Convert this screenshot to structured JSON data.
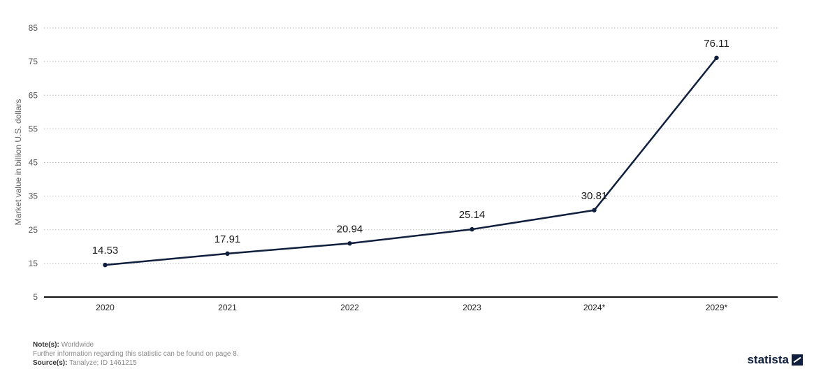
{
  "chart_data": {
    "type": "line",
    "categories": [
      "2020",
      "2021",
      "2022",
      "2023",
      "2024*",
      "2029*"
    ],
    "values": [
      14.53,
      17.91,
      20.94,
      25.14,
      30.81,
      76.11
    ],
    "data_labels": [
      "14.53",
      "17.91",
      "20.94",
      "25.14",
      "30.81",
      "76.11"
    ],
    "ylabel": "Market value in billion U.S. dollars",
    "ylim": [
      5,
      85
    ],
    "yticks": [
      5,
      15,
      25,
      35,
      45,
      55,
      65,
      75,
      85
    ],
    "grid": "horizontal dotted",
    "line_color": "#0f1f3d"
  },
  "footer": {
    "notes_label": "Note(s):",
    "notes_value": "Worldwide",
    "info": "Further information regarding this statistic can be found on page 8.",
    "source_label": "Source(s):",
    "source_value": "Tanalyze; ID 1461215"
  },
  "brand": {
    "name": "statista",
    "icon": "statista-logo-icon"
  }
}
